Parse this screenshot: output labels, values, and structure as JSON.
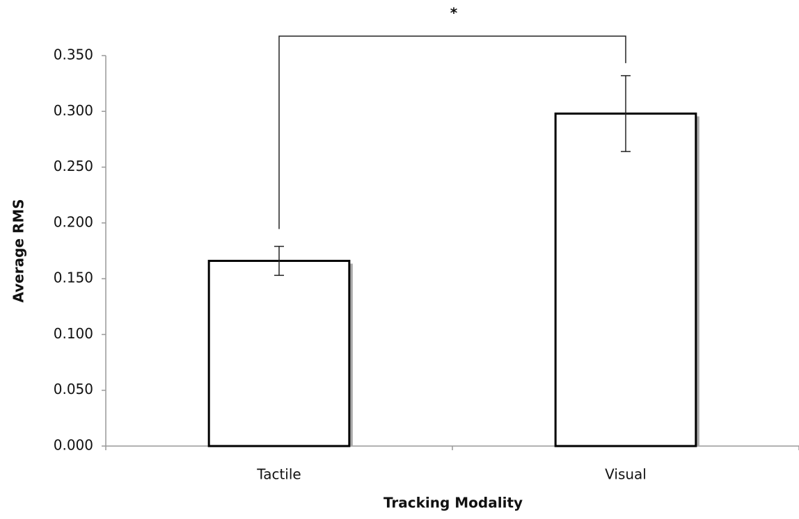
{
  "chart_data": {
    "type": "bar",
    "annotation": "*",
    "xlabel": "Tracking Modality",
    "ylabel": "Average RMS",
    "categories": [
      "Tactile",
      "Visual"
    ],
    "values": [
      0.166,
      0.298
    ],
    "errors": [
      0.013,
      0.034
    ],
    "color": "#ffffff",
    "ylim": [
      0,
      0.35
    ],
    "yticks": [
      {
        "value": 0,
        "label": "0.000"
      },
      {
        "value": 0.05,
        "label": "0.050"
      },
      {
        "value": 0.1,
        "label": "0.100"
      },
      {
        "value": 0.15,
        "label": "0.150"
      },
      {
        "value": 0.2,
        "label": "0.200"
      },
      {
        "value": 0.25,
        "label": "0.250"
      },
      {
        "value": 0.3,
        "label": "0.300"
      },
      {
        "value": 0.35,
        "label": "0.350"
      }
    ],
    "grid": false
  }
}
